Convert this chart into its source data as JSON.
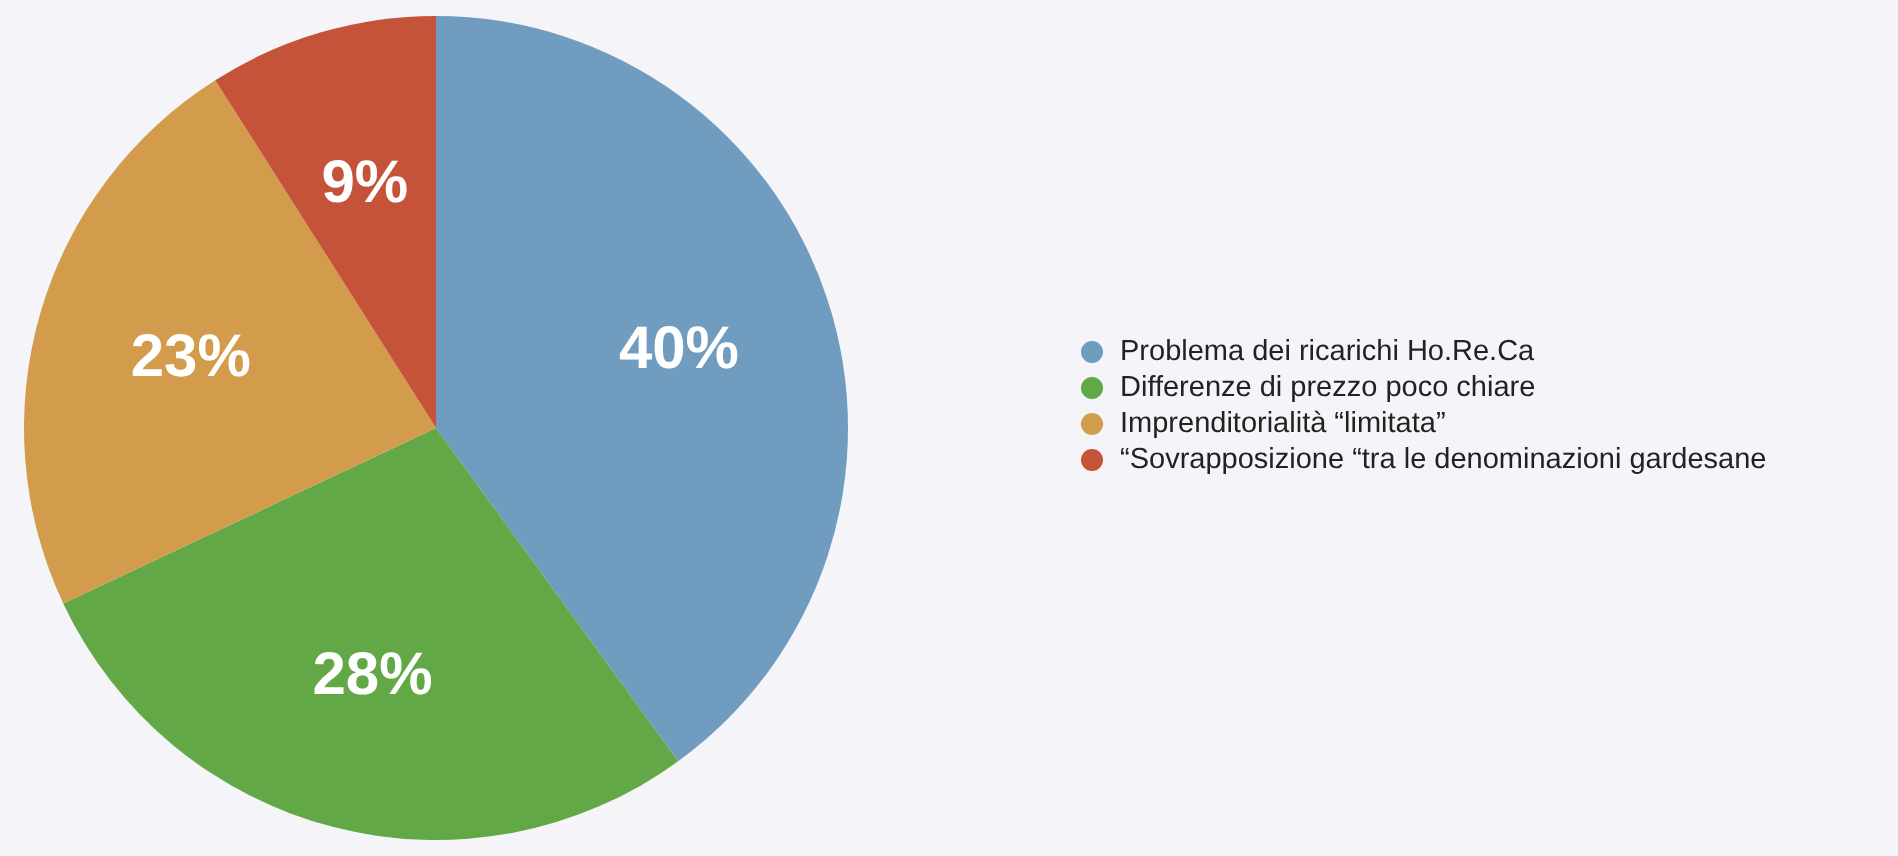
{
  "chart_data": {
    "type": "pie",
    "categories": [
      "Problema dei ricarichi Ho.Re.Ca",
      "Differenze di prezzo poco chiare",
      "Imprenditorialità “limitata”",
      "“Sovrapposizione “tra le denominazioni gardesane"
    ],
    "values": [
      40,
      28,
      23,
      9
    ],
    "colors": [
      "#6f9cbf",
      "#62a847",
      "#d39c4c",
      "#c5533a"
    ],
    "value_labels": [
      "40%",
      "28%",
      "23%",
      "9%"
    ],
    "legend": "right"
  }
}
